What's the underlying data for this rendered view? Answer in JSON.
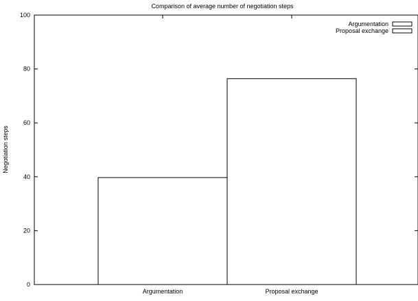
{
  "chart_data": {
    "type": "bar",
    "title": "Comparison of average number of negotiation steps",
    "xlabel": "",
    "ylabel": "Negotiation steps",
    "ylim": [
      0,
      100
    ],
    "yticks": [
      0,
      20,
      40,
      60,
      80,
      100
    ],
    "categories": [
      "Argumentation",
      "Proposal exchange"
    ],
    "values": [
      39.7,
      76.4
    ],
    "legend": {
      "position": "top-right",
      "entries": [
        "Argumentation",
        "Proposal exchange"
      ]
    },
    "grid": false,
    "bar_fill": "#ffffff",
    "bar_stroke": "#000000"
  }
}
